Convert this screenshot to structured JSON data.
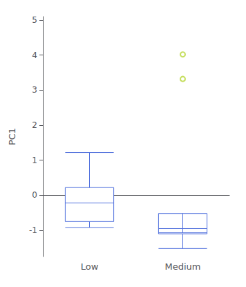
{
  "chart_data": {
    "type": "boxplot",
    "categories": [
      "Low",
      "Medium"
    ],
    "values": [
      [
        -0.92,
        -0.75,
        -0.22,
        0.22,
        1.22
      ],
      [
        -1.52,
        -1.1,
        -0.95,
        -0.52,
        -1.07
      ]
    ],
    "fliers": [
      [],
      [
        3.32,
        4.02
      ]
    ],
    "ylabel": "PC1",
    "ylim": [
      -1.75,
      5.1
    ],
    "yticks": [
      -1,
      0,
      1,
      2,
      3,
      4,
      5
    ],
    "grid": false
  }
}
